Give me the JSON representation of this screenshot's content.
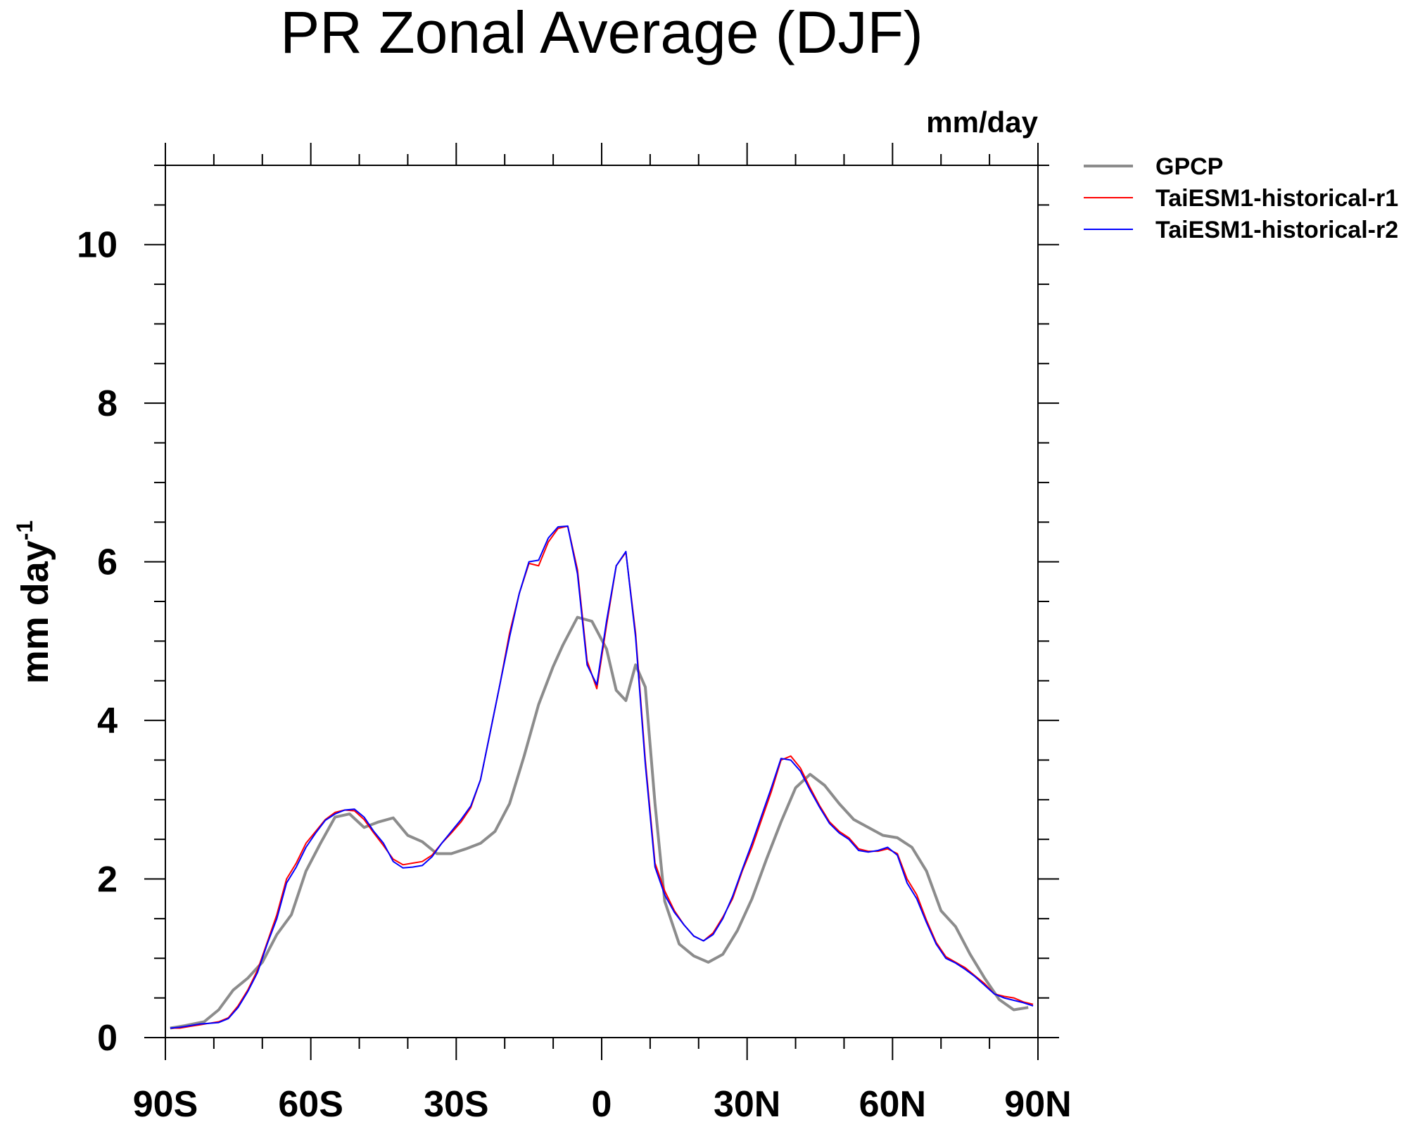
{
  "chart_data": {
    "type": "line",
    "title": "PR Zonal Average (DJF)",
    "units_label": "mm/day",
    "ylabel": "mm day",
    "ylabel_superscript": "-1",
    "xlim": [
      -90,
      90
    ],
    "ylim": [
      0,
      11
    ],
    "xticks": [
      {
        "value": -90,
        "label": "90S"
      },
      {
        "value": -60,
        "label": "60S"
      },
      {
        "value": -30,
        "label": "30S"
      },
      {
        "value": 0,
        "label": "0"
      },
      {
        "value": 30,
        "label": "30N"
      },
      {
        "value": 60,
        "label": "60N"
      },
      {
        "value": 90,
        "label": "90N"
      }
    ],
    "yticks": [
      {
        "value": 0,
        "label": "0"
      },
      {
        "value": 2,
        "label": "2"
      },
      {
        "value": 4,
        "label": "4"
      },
      {
        "value": 6,
        "label": "6"
      },
      {
        "value": 8,
        "label": "8"
      },
      {
        "value": 10,
        "label": "10"
      }
    ],
    "grid": false,
    "legend_position": "right",
    "series": [
      {
        "name": "GPCP",
        "color": "#8c8c8c",
        "x": [
          -89,
          -86,
          -82,
          -79,
          -76,
          -73,
          -70,
          -67,
          -64,
          -61,
          -58,
          -55,
          -52,
          -49,
          -46,
          -43,
          -40,
          -37,
          -34,
          -31,
          -28,
          -25,
          -22,
          -19,
          -16,
          -13,
          -10,
          -8,
          -5,
          -2,
          1,
          3,
          5,
          7,
          9,
          11,
          13,
          16,
          19,
          22,
          25,
          28,
          31,
          34,
          37,
          40,
          43,
          46,
          49,
          52,
          55,
          58,
          61,
          64,
          67,
          70,
          73,
          76,
          79,
          82,
          85,
          88
        ],
        "values": [
          0.12,
          0.15,
          0.2,
          0.35,
          0.6,
          0.75,
          0.95,
          1.3,
          1.55,
          2.1,
          2.45,
          2.78,
          2.82,
          2.65,
          2.72,
          2.77,
          2.55,
          2.47,
          2.32,
          2.32,
          2.38,
          2.45,
          2.6,
          2.95,
          3.55,
          4.2,
          4.68,
          4.95,
          5.3,
          5.25,
          4.9,
          4.38,
          4.25,
          4.7,
          4.42,
          2.95,
          1.72,
          1.18,
          1.03,
          0.95,
          1.05,
          1.35,
          1.75,
          2.25,
          2.72,
          3.15,
          3.32,
          3.18,
          2.95,
          2.75,
          2.65,
          2.55,
          2.52,
          2.4,
          2.1,
          1.6,
          1.4,
          1.05,
          0.75,
          0.48,
          0.35,
          0.38
        ]
      },
      {
        "name": "TaiESM1-historical-r1",
        "color": "#ff0000",
        "x": [
          -89,
          -87,
          -85,
          -83,
          -81,
          -79,
          -77,
          -75,
          -73,
          -71,
          -69,
          -67,
          -65,
          -63,
          -61,
          -59,
          -57,
          -55,
          -53,
          -51,
          -49,
          -47,
          -45,
          -43,
          -41,
          -39,
          -37,
          -35,
          -33,
          -31,
          -29,
          -27,
          -25,
          -23,
          -21,
          -19,
          -17,
          -15,
          -13,
          -11,
          -9,
          -7,
          -5,
          -3,
          -1,
          1,
          3,
          5,
          7,
          9,
          11,
          13,
          15,
          17,
          19,
          21,
          23,
          25,
          27,
          29,
          31,
          33,
          35,
          37,
          39,
          41,
          43,
          45,
          47,
          49,
          51,
          53,
          55,
          57,
          59,
          61,
          63,
          65,
          67,
          69,
          71,
          73,
          75,
          77,
          79,
          81,
          83,
          85,
          87,
          89
        ],
        "values": [
          0.12,
          0.12,
          0.14,
          0.16,
          0.18,
          0.2,
          0.25,
          0.4,
          0.6,
          0.85,
          1.2,
          1.55,
          2.0,
          2.2,
          2.45,
          2.6,
          2.75,
          2.84,
          2.87,
          2.86,
          2.75,
          2.58,
          2.42,
          2.25,
          2.18,
          2.2,
          2.22,
          2.3,
          2.45,
          2.58,
          2.72,
          2.9,
          3.25,
          3.85,
          4.45,
          5.1,
          5.6,
          5.98,
          5.95,
          6.25,
          6.42,
          6.45,
          5.9,
          4.75,
          4.4,
          5.2,
          5.95,
          6.12,
          5.1,
          3.5,
          2.2,
          1.85,
          1.6,
          1.42,
          1.28,
          1.22,
          1.32,
          1.52,
          1.75,
          2.1,
          2.4,
          2.75,
          3.1,
          3.5,
          3.55,
          3.4,
          3.15,
          2.92,
          2.72,
          2.6,
          2.52,
          2.38,
          2.35,
          2.35,
          2.38,
          2.32,
          2.0,
          1.8,
          1.48,
          1.2,
          1.02,
          0.95,
          0.88,
          0.78,
          0.68,
          0.55,
          0.52,
          0.5,
          0.45,
          0.42
        ]
      },
      {
        "name": "TaiESM1-historical-r2",
        "color": "#0000ff",
        "x": [
          -89,
          -87,
          -85,
          -83,
          -81,
          -79,
          -77,
          -75,
          -73,
          -71,
          -69,
          -67,
          -65,
          -63,
          -61,
          -59,
          -57,
          -55,
          -53,
          -51,
          -49,
          -47,
          -45,
          -43,
          -41,
          -39,
          -37,
          -35,
          -33,
          -31,
          -29,
          -27,
          -25,
          -23,
          -21,
          -19,
          -17,
          -15,
          -13,
          -11,
          -9,
          -7,
          -5,
          -3,
          -1,
          1,
          3,
          5,
          7,
          9,
          11,
          13,
          15,
          17,
          19,
          21,
          23,
          25,
          27,
          29,
          31,
          33,
          35,
          37,
          39,
          41,
          43,
          45,
          47,
          49,
          51,
          53,
          55,
          57,
          59,
          61,
          63,
          65,
          67,
          69,
          71,
          73,
          75,
          77,
          79,
          81,
          83,
          85,
          87,
          89
        ],
        "values": [
          0.12,
          0.13,
          0.15,
          0.17,
          0.18,
          0.19,
          0.24,
          0.38,
          0.58,
          0.82,
          1.18,
          1.5,
          1.95,
          2.15,
          2.4,
          2.58,
          2.74,
          2.82,
          2.87,
          2.88,
          2.78,
          2.6,
          2.45,
          2.22,
          2.14,
          2.15,
          2.17,
          2.28,
          2.45,
          2.6,
          2.75,
          2.92,
          3.25,
          3.85,
          4.45,
          5.05,
          5.6,
          6.0,
          6.02,
          6.3,
          6.44,
          6.45,
          5.85,
          4.7,
          4.45,
          5.25,
          5.95,
          6.13,
          5.05,
          3.45,
          2.15,
          1.8,
          1.58,
          1.42,
          1.28,
          1.22,
          1.3,
          1.5,
          1.78,
          2.12,
          2.45,
          2.8,
          3.15,
          3.52,
          3.5,
          3.36,
          3.12,
          2.9,
          2.7,
          2.58,
          2.5,
          2.36,
          2.34,
          2.36,
          2.4,
          2.3,
          1.95,
          1.75,
          1.45,
          1.18,
          1.0,
          0.94,
          0.86,
          0.77,
          0.66,
          0.55,
          0.5,
          0.47,
          0.44,
          0.4
        ]
      }
    ]
  }
}
